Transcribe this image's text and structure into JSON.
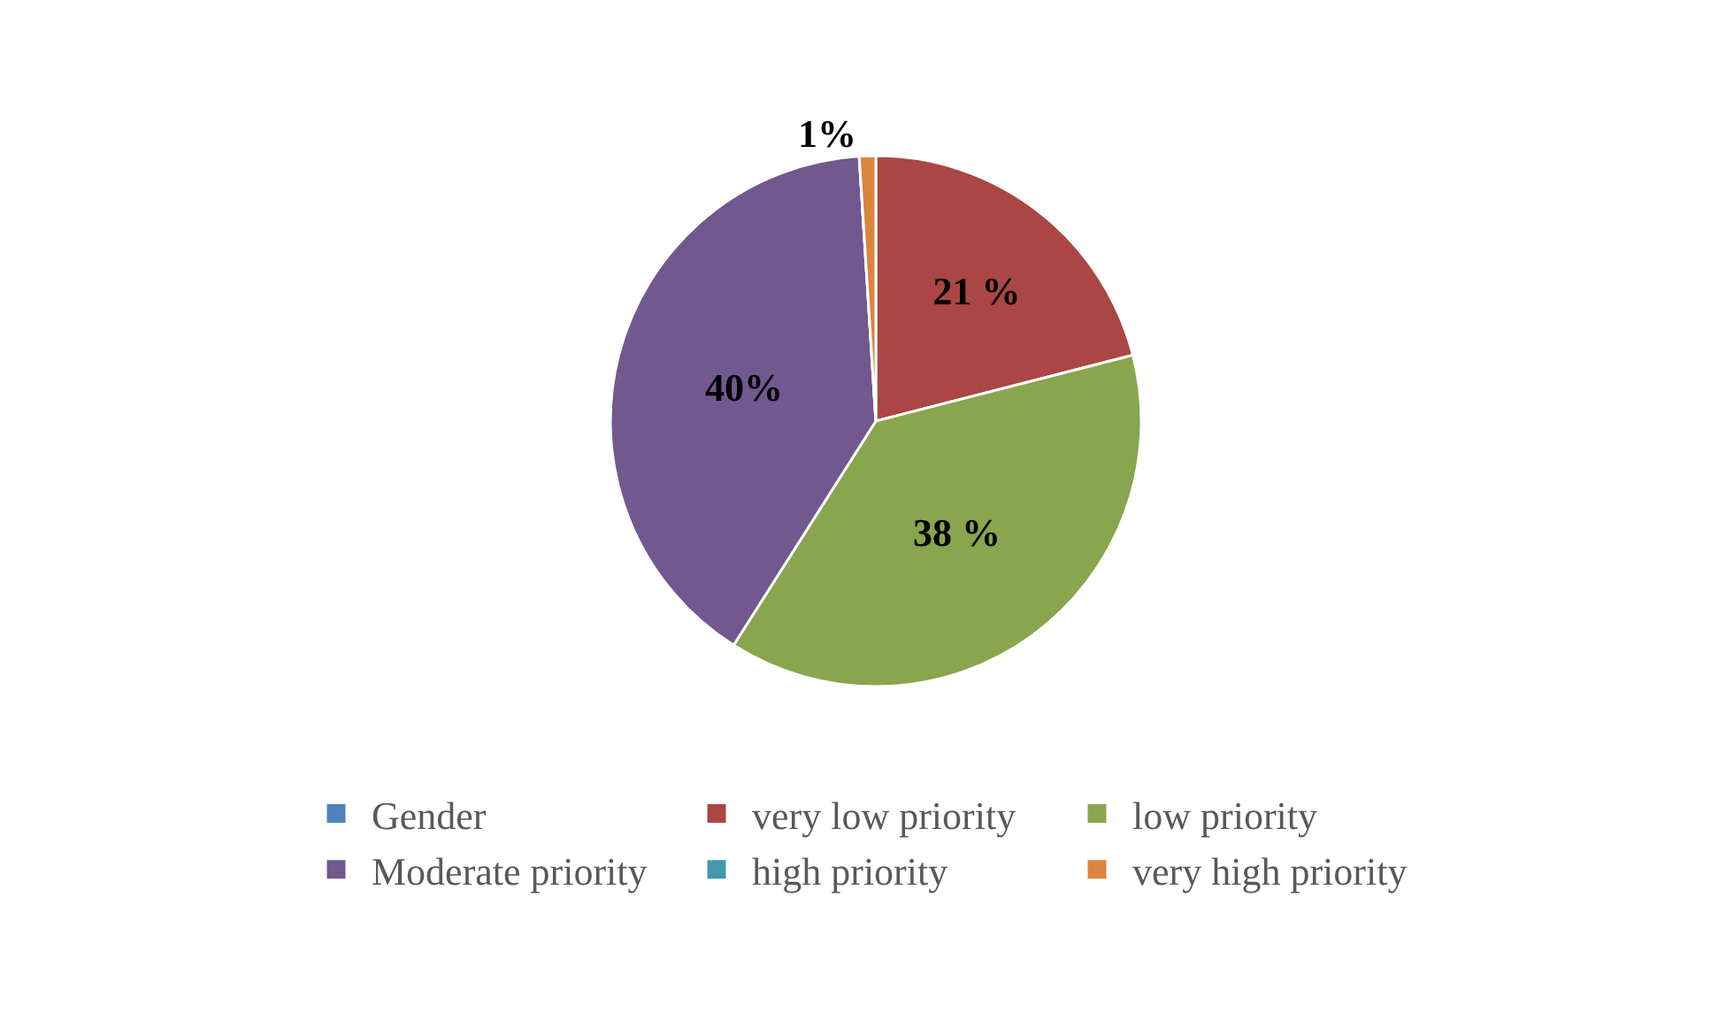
{
  "chart_data": {
    "type": "pie",
    "categories": [
      "Gender",
      "very low priority",
      "low priority",
      "Moderate priority",
      "high priority",
      "very high priority"
    ],
    "values": [
      0,
      21,
      38,
      40,
      0,
      1
    ],
    "colors": [
      "#4f81bd",
      "#aa4643",
      "#89a54e",
      "#71588f",
      "#4198af",
      "#db843d"
    ],
    "value_labels": [
      null,
      "21 %",
      "38 %",
      "40%",
      null,
      "1%"
    ],
    "legend": "bottom"
  }
}
